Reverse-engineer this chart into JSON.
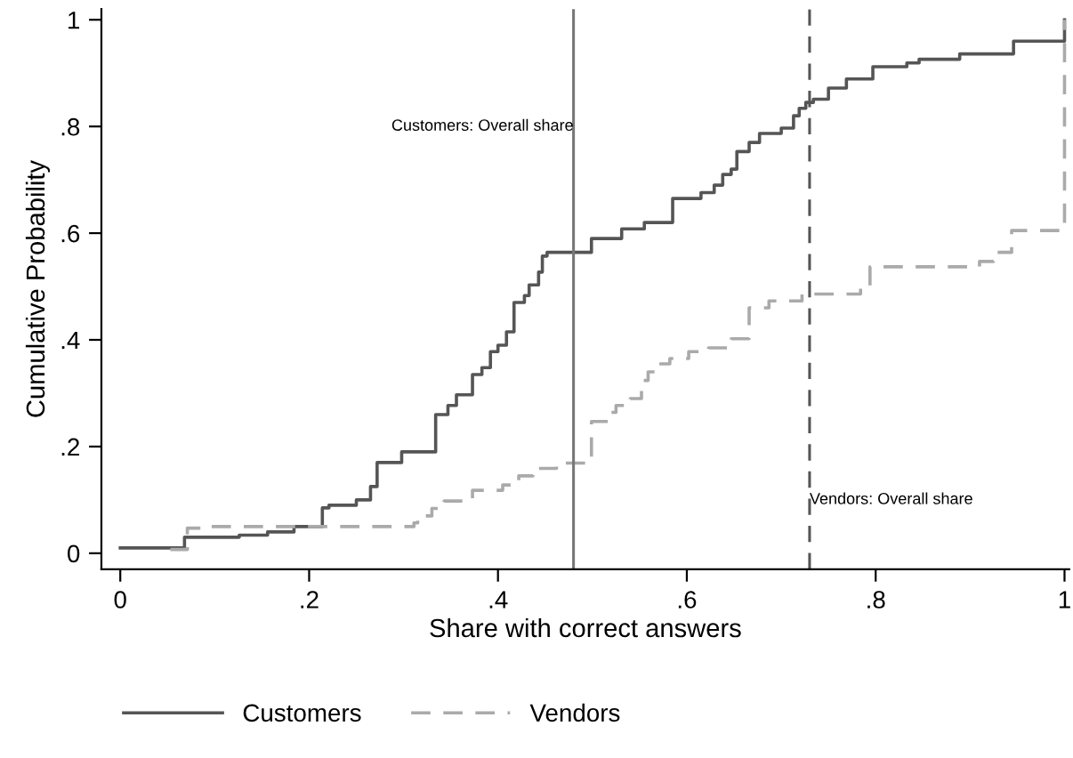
{
  "chart_data": {
    "type": "step",
    "xlabel": "Share with correct answers",
    "ylabel": "Cumulative Probability",
    "xlim": [
      -0.02,
      1.005
    ],
    "ylim": [
      -0.03,
      1.02
    ],
    "xticks": [
      0,
      {
        "value": 0.2,
        "label": ".2"
      },
      {
        "value": 0.4,
        "label": ".4"
      },
      {
        "value": 0.6,
        "label": ".6"
      },
      {
        "value": 0.8,
        "label": ".8"
      },
      1
    ],
    "yticks": [
      0,
      {
        "value": 0.2,
        "label": ".2"
      },
      {
        "value": 0.4,
        "label": ".4"
      },
      {
        "value": 0.6,
        "label": ".6"
      },
      {
        "value": 0.8,
        "label": ".8"
      },
      1
    ],
    "grid": false,
    "legend": "bottom",
    "series": [
      {
        "name": "Customers",
        "color": "#555555",
        "line_style": "solid",
        "x": [
          0,
          0.068,
          0.126,
          0.156,
          0.184,
          0.214,
          0.221,
          0.25,
          0.265,
          0.272,
          0.298,
          0.334,
          0.347,
          0.356,
          0.373,
          0.383,
          0.392,
          0.4,
          0.409,
          0.417,
          0.428,
          0.433,
          0.443,
          0.447,
          0.452,
          0.499,
          0.531,
          0.555,
          0.585,
          0.615,
          0.629,
          0.638,
          0.647,
          0.653,
          0.666,
          0.677,
          0.7,
          0.713,
          0.719,
          0.726,
          0.734,
          0.75,
          0.769,
          0.797,
          0.833,
          0.846,
          0.889,
          0.946,
          1.0
        ],
        "values": [
          0.01,
          0.03,
          0.034,
          0.04,
          0.05,
          0.085,
          0.09,
          0.1,
          0.125,
          0.17,
          0.19,
          0.26,
          0.277,
          0.297,
          0.335,
          0.348,
          0.378,
          0.39,
          0.415,
          0.47,
          0.483,
          0.503,
          0.527,
          0.557,
          0.564,
          0.59,
          0.608,
          0.62,
          0.665,
          0.676,
          0.69,
          0.71,
          0.72,
          0.753,
          0.77,
          0.787,
          0.797,
          0.82,
          0.834,
          0.845,
          0.851,
          0.872,
          0.889,
          0.912,
          0.919,
          0.926,
          0.936,
          0.96,
          1.0
        ]
      },
      {
        "name": "Vendors",
        "color": "#aaaaaa",
        "line_style": "dashed",
        "x": [
          0.053,
          0.071,
          0.086,
          0.311,
          0.315,
          0.33,
          0.338,
          0.343,
          0.373,
          0.405,
          0.422,
          0.437,
          0.462,
          0.499,
          0.518,
          0.525,
          0.54,
          0.552,
          0.559,
          0.57,
          0.582,
          0.602,
          0.623,
          0.647,
          0.666,
          0.687,
          0.722,
          0.784,
          0.794,
          0.91,
          0.925,
          0.944,
          1.0
        ],
        "values": [
          0.007,
          0.047,
          0.05,
          0.057,
          0.07,
          0.084,
          0.091,
          0.098,
          0.118,
          0.128,
          0.145,
          0.159,
          0.169,
          0.247,
          0.264,
          0.277,
          0.29,
          0.324,
          0.34,
          0.355,
          0.365,
          0.378,
          0.385,
          0.402,
          0.46,
          0.473,
          0.486,
          0.5,
          0.537,
          0.547,
          0.564,
          0.605,
          1.0
        ]
      }
    ],
    "ref_lines": [
      {
        "axis": "x",
        "value": 0.48,
        "color": "#777777",
        "line_style": "solid"
      },
      {
        "axis": "x",
        "value": 0.73,
        "color": "#555555",
        "line_style": "dashed"
      }
    ],
    "annotations": [
      {
        "text": "Customers: Overall share",
        "x": 0.48,
        "y": 0.8
      },
      {
        "text": "Vendors: Overall share",
        "x": 0.73,
        "y": 0.1
      }
    ]
  }
}
